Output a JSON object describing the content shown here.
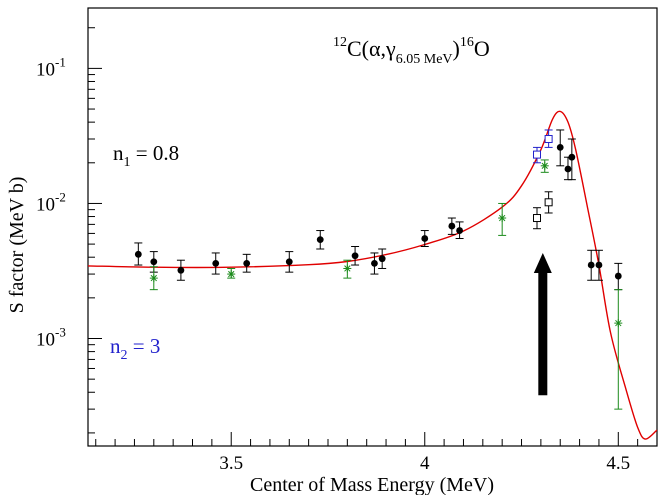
{
  "chart_data": {
    "type": "scatter",
    "title": {
      "reaction_prefix_sup": "12",
      "reaction_body": "C(α,γ",
      "reaction_sub": "6.05 MeV",
      "reaction_close": ")",
      "reaction_product_sup": "16",
      "reaction_product": "O"
    },
    "xlabel": "Center of Mass Energy (MeV)",
    "ylabel": "S factor (MeV b)",
    "xlim": [
      3.13,
      4.6
    ],
    "ylim": [
      0.00016,
      0.28
    ],
    "y_scale": "log",
    "x_ticks": [
      {
        "value": 3.5,
        "label": "3.5"
      },
      {
        "value": 4.0,
        "label": "4"
      },
      {
        "value": 4.5,
        "label": "4.5"
      }
    ],
    "y_ticks": [
      {
        "value": 0.001,
        "base": "10",
        "exp": "-3"
      },
      {
        "value": 0.01,
        "base": "10",
        "exp": "-2"
      },
      {
        "value": 0.1,
        "base": "10",
        "exp": "-1"
      }
    ],
    "annotations": {
      "n1": {
        "base": "n",
        "sub": "1",
        "rest": " = 0.8",
        "color": "#000000"
      },
      "n2": {
        "base": "n",
        "sub": "2",
        "rest": " = 3",
        "color": "#2222cc"
      }
    },
    "arrow": {
      "x": 4.305,
      "y_from": 0.00038,
      "y_to": 0.0043,
      "color": "#000000"
    },
    "series": [
      {
        "marker": "circle",
        "color": "#000000",
        "points": [
          {
            "x": 3.26,
            "y": 0.0042,
            "lo": 0.0035,
            "hi": 0.0051
          },
          {
            "x": 3.3,
            "y": 0.0037,
            "lo": 0.0031,
            "hi": 0.0044
          },
          {
            "x": 3.37,
            "y": 0.0032,
            "lo": 0.0027,
            "hi": 0.0038
          },
          {
            "x": 3.46,
            "y": 0.0036,
            "lo": 0.003,
            "hi": 0.0043
          },
          {
            "x": 3.54,
            "y": 0.0036,
            "lo": 0.0031,
            "hi": 0.0042
          },
          {
            "x": 3.65,
            "y": 0.0037,
            "lo": 0.0031,
            "hi": 0.0044
          },
          {
            "x": 3.73,
            "y": 0.0054,
            "lo": 0.0046,
            "hi": 0.0063
          },
          {
            "x": 3.82,
            "y": 0.0041,
            "lo": 0.0035,
            "hi": 0.0048
          },
          {
            "x": 3.87,
            "y": 0.0036,
            "lo": 0.003,
            "hi": 0.0043
          },
          {
            "x": 3.89,
            "y": 0.0039,
            "lo": 0.0033,
            "hi": 0.0046
          },
          {
            "x": 4.0,
            "y": 0.0055,
            "lo": 0.0048,
            "hi": 0.0063
          },
          {
            "x": 4.07,
            "y": 0.0068,
            "lo": 0.0059,
            "hi": 0.0078
          },
          {
            "x": 4.09,
            "y": 0.0063,
            "lo": 0.0055,
            "hi": 0.0073
          },
          {
            "x": 4.35,
            "y": 0.026,
            "lo": 0.019,
            "hi": 0.035
          },
          {
            "x": 4.37,
            "y": 0.018,
            "lo": 0.015,
            "hi": 0.022
          },
          {
            "x": 4.38,
            "y": 0.022,
            "lo": 0.015,
            "hi": 0.03
          },
          {
            "x": 4.43,
            "y": 0.0035,
            "lo": 0.0027,
            "hi": 0.0045
          },
          {
            "x": 4.45,
            "y": 0.0035,
            "lo": 0.0027,
            "hi": 0.0045
          },
          {
            "x": 4.5,
            "y": 0.0029,
            "lo": 0.0023,
            "hi": 0.0036
          }
        ]
      },
      {
        "marker": "star",
        "color": "#1a8a1a",
        "points": [
          {
            "x": 3.3,
            "y": 0.0028,
            "lo": 0.0023,
            "hi": 0.0034
          },
          {
            "x": 3.5,
            "y": 0.003,
            "lo": 0.0028,
            "hi": 0.0033
          },
          {
            "x": 3.8,
            "y": 0.0033,
            "lo": 0.0028,
            "hi": 0.0038
          },
          {
            "x": 4.2,
            "y": 0.0078,
            "lo": 0.0058,
            "hi": 0.01
          },
          {
            "x": 4.31,
            "y": 0.019,
            "lo": 0.017,
            "hi": 0.021
          },
          {
            "x": 4.5,
            "y": 0.0013,
            "lo": 0.0003,
            "hi": 0.0023
          }
        ]
      },
      {
        "marker": "square-open",
        "color": "#000000",
        "points": [
          {
            "x": 4.29,
            "y": 0.0078,
            "lo": 0.0065,
            "hi": 0.0093
          },
          {
            "x": 4.32,
            "y": 0.0102,
            "lo": 0.0085,
            "hi": 0.0122
          }
        ]
      },
      {
        "marker": "square-open",
        "color": "#2222cc",
        "points": [
          {
            "x": 4.29,
            "y": 0.023,
            "lo": 0.02,
            "hi": 0.026
          },
          {
            "x": 4.32,
            "y": 0.03,
            "lo": 0.026,
            "hi": 0.035
          }
        ]
      }
    ],
    "fit_curve": {
      "color": "#e00000",
      "points": [
        [
          3.13,
          0.00345
        ],
        [
          3.3,
          0.00337
        ],
        [
          3.5,
          0.00337
        ],
        [
          3.7,
          0.00352
        ],
        [
          3.8,
          0.00372
        ],
        [
          3.9,
          0.00418
        ],
        [
          4.0,
          0.00497
        ],
        [
          4.1,
          0.00625
        ],
        [
          4.2,
          0.0094
        ],
        [
          4.25,
          0.0135
        ],
        [
          4.3,
          0.025
        ],
        [
          4.33,
          0.042
        ],
        [
          4.35,
          0.048
        ],
        [
          4.37,
          0.04
        ],
        [
          4.39,
          0.025
        ],
        [
          4.42,
          0.0095
        ],
        [
          4.45,
          0.0035
        ],
        [
          4.48,
          0.0011
        ],
        [
          4.52,
          0.00042
        ],
        [
          4.55,
          0.00022
        ],
        [
          4.57,
          0.00018
        ],
        [
          4.6,
          0.00021
        ]
      ]
    }
  }
}
